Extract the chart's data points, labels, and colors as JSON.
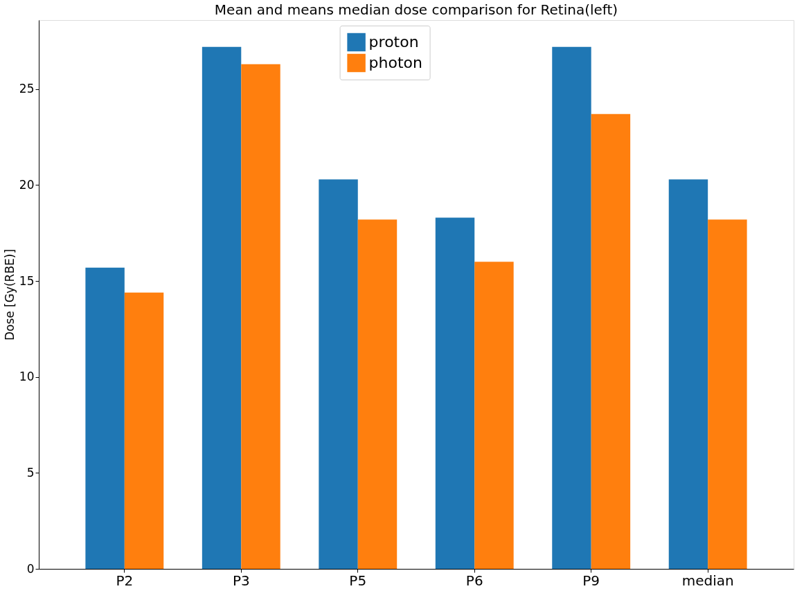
{
  "chart_data": {
    "type": "bar",
    "title": "Mean and means median dose comparison for Retina(left)",
    "ylabel": "Dose [Gy(RBE)]",
    "categories": [
      "P2",
      "P3",
      "P5",
      "P6",
      "P9",
      "median"
    ],
    "series": [
      {
        "name": "proton",
        "color": "#1f77b4",
        "values": [
          15.7,
          27.2,
          20.3,
          18.3,
          27.2,
          20.3
        ]
      },
      {
        "name": "photon",
        "color": "#ff7f0e",
        "values": [
          14.4,
          26.3,
          18.2,
          16.0,
          23.7,
          18.2
        ]
      }
    ],
    "ylim": [
      0,
      28.6
    ],
    "yticks": [
      0,
      5,
      10,
      15,
      20,
      25
    ],
    "grid": false,
    "legend": "top"
  }
}
